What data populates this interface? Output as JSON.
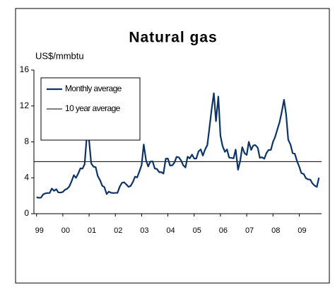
{
  "chart_data": {
    "type": "line",
    "title": "Natural gas",
    "y_label": "US$/mmbtu",
    "x": [
      1999.0,
      1999.08,
      1999.17,
      1999.25,
      1999.33,
      1999.42,
      1999.5,
      1999.58,
      1999.67,
      1999.75,
      1999.83,
      1999.92,
      2000.0,
      2000.08,
      2000.17,
      2000.25,
      2000.33,
      2000.42,
      2000.5,
      2000.58,
      2000.67,
      2000.75,
      2000.83,
      2000.92,
      2001.0,
      2001.08,
      2001.17,
      2001.25,
      2001.33,
      2001.42,
      2001.5,
      2001.58,
      2001.67,
      2001.75,
      2001.83,
      2001.92,
      2002.0,
      2002.08,
      2002.17,
      2002.25,
      2002.33,
      2002.42,
      2002.5,
      2002.58,
      2002.67,
      2002.75,
      2002.83,
      2002.92,
      2003.0,
      2003.08,
      2003.17,
      2003.25,
      2003.33,
      2003.42,
      2003.5,
      2003.58,
      2003.67,
      2003.75,
      2003.83,
      2003.92,
      2004.0,
      2004.08,
      2004.17,
      2004.25,
      2004.33,
      2004.42,
      2004.5,
      2004.58,
      2004.67,
      2004.75,
      2004.83,
      2004.92,
      2005.0,
      2005.08,
      2005.17,
      2005.25,
      2005.33,
      2005.42,
      2005.5,
      2005.58,
      2005.67,
      2005.75,
      2005.83,
      2005.92,
      2006.0,
      2006.08,
      2006.17,
      2006.25,
      2006.33,
      2006.42,
      2006.5,
      2006.58,
      2006.67,
      2006.75,
      2006.83,
      2006.92,
      2007.0,
      2007.08,
      2007.17,
      2007.25,
      2007.33,
      2007.42,
      2007.5,
      2007.58,
      2007.67,
      2007.75,
      2007.83,
      2007.92,
      2008.0,
      2008.08,
      2008.17,
      2008.25,
      2008.33,
      2008.42,
      2008.5,
      2008.58,
      2008.67,
      2008.75,
      2008.83,
      2008.92,
      2009.0,
      2009.08,
      2009.17,
      2009.25,
      2009.33,
      2009.42,
      2009.5,
      2009.58,
      2009.67,
      2009.75
    ],
    "series": [
      {
        "name": "Monthly average",
        "color": "#0d3468",
        "values": [
          1.85,
          1.77,
          1.79,
          2.15,
          2.26,
          2.3,
          2.31,
          2.8,
          2.55,
          2.73,
          2.37,
          2.36,
          2.42,
          2.66,
          2.79,
          3.04,
          3.59,
          4.29,
          3.99,
          4.43,
          5.06,
          5.02,
          5.52,
          8.9,
          8.17,
          5.61,
          5.23,
          5.19,
          4.19,
          3.72,
          3.11,
          2.97,
          2.19,
          2.46,
          2.34,
          2.3,
          2.32,
          2.32,
          3.03,
          3.43,
          3.5,
          3.26,
          2.99,
          3.09,
          3.55,
          4.13,
          4.04,
          4.74,
          5.43,
          7.71,
          5.93,
          5.26,
          5.81,
          5.82,
          5.03,
          4.99,
          4.62,
          4.63,
          4.47,
          6.13,
          6.14,
          5.37,
          5.39,
          5.71,
          6.33,
          6.27,
          5.93,
          5.41,
          5.15,
          6.35,
          6.17,
          6.58,
          6.15,
          6.14,
          6.96,
          7.16,
          6.47,
          7.18,
          7.63,
          9.53,
          11.75,
          13.42,
          10.3,
          13.05,
          8.69,
          7.54,
          6.89,
          7.16,
          6.25,
          6.21,
          6.17,
          7.14,
          4.9,
          5.85,
          7.41,
          6.73,
          6.55,
          8.0,
          7.11,
          7.6,
          7.64,
          7.35,
          6.22,
          6.29,
          6.12,
          6.74,
          7.1,
          7.11,
          7.99,
          8.54,
          9.41,
          10.18,
          11.27,
          12.69,
          11.09,
          8.26,
          7.67,
          6.74,
          6.68,
          5.82,
          5.24,
          4.52,
          4.42,
          3.97,
          3.83,
          3.8,
          3.38,
          3.14,
          2.99,
          4.01
        ]
      }
    ],
    "average": {
      "name": "10 year average",
      "value": 5.8,
      "color": "#000000"
    },
    "xlim": [
      1998.9,
      2009.85
    ],
    "xticks": [
      {
        "value": 1999,
        "label": "99"
      },
      {
        "value": 2000,
        "label": "00"
      },
      {
        "value": 2001,
        "label": "01"
      },
      {
        "value": 2002,
        "label": "02"
      },
      {
        "value": 2003,
        "label": "03"
      },
      {
        "value": 2004,
        "label": "04"
      },
      {
        "value": 2005,
        "label": "05"
      },
      {
        "value": 2006,
        "label": "06"
      },
      {
        "value": 2007,
        "label": "07"
      },
      {
        "value": 2008,
        "label": "08"
      },
      {
        "value": 2009,
        "label": "09"
      }
    ],
    "ylim": [
      0,
      16
    ],
    "yticks": [
      0,
      4,
      8,
      12,
      16
    ],
    "legend": "upper left"
  }
}
